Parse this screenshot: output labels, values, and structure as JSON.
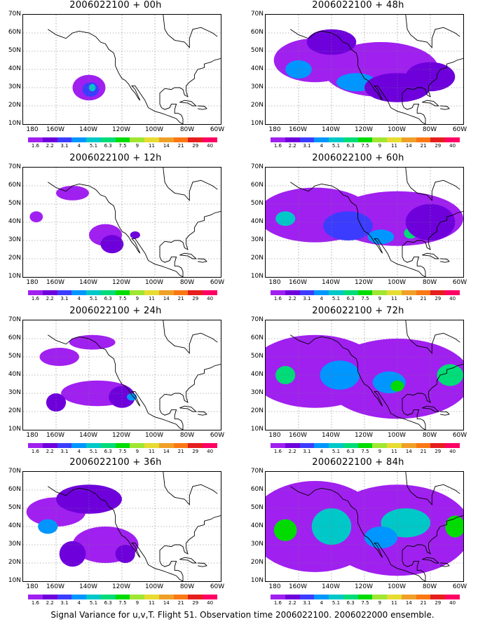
{
  "caption": "Signal Variance for u,v,T. Flight 51. Observation time 2006022100. 2006022000 ensemble.",
  "lat_labels": [
    "70N",
    "60N",
    "50N",
    "40N",
    "30N",
    "20N",
    "10N"
  ],
  "lon_labels": [
    "180",
    "160W",
    "140W",
    "120W",
    "100W",
    "80W",
    "60W"
  ],
  "colorbar_labels": [
    "1.6",
    "2.2",
    "3.1",
    "4",
    "5.1",
    "6.3",
    "7.5",
    "9",
    "11",
    "14",
    "21",
    "29",
    "40"
  ],
  "colorbar_colors": [
    "#a020f0",
    "#6e00dc",
    "#3c3cff",
    "#0096ff",
    "#00c8c8",
    "#00dc78",
    "#00dc00",
    "#a0e632",
    "#e6dc32",
    "#f0a028",
    "#fa7814",
    "#e61e1e",
    "#ff0064"
  ],
  "panels": [
    {
      "title": "2006022100 + 00h",
      "lead": 0
    },
    {
      "title": "2006022100 + 48h",
      "lead": 48
    },
    {
      "title": "2006022100 + 12h",
      "lead": 12
    },
    {
      "title": "2006022100 + 60h",
      "lead": 60
    },
    {
      "title": "2006022100 + 24h",
      "lead": 24
    },
    {
      "title": "2006022100 + 72h",
      "lead": 72
    },
    {
      "title": "2006022100 + 36h",
      "lead": 36
    },
    {
      "title": "2006022100 + 84h",
      "lead": 84
    }
  ]
}
